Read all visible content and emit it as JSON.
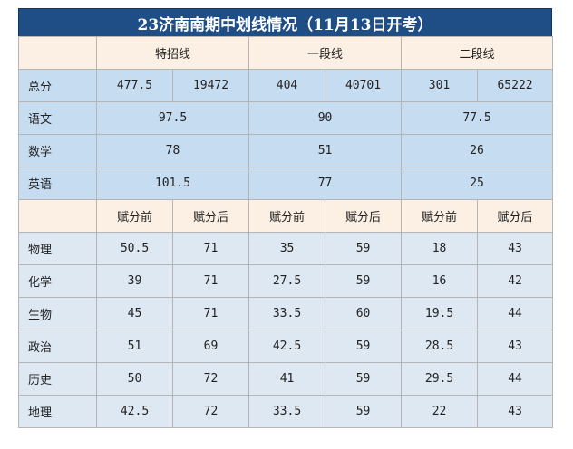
{
  "title": "23济南南期中划线情况（11月13日开考）",
  "header_groups": [
    "特招线",
    "一段线",
    "二段线"
  ],
  "total": {
    "label": "总分",
    "values": [
      "477.5",
      "19472",
      "404",
      "40701",
      "301",
      "65222"
    ]
  },
  "core_rows": [
    {
      "label": "语文",
      "values": [
        "97.5",
        "90",
        "77.5"
      ]
    },
    {
      "label": "数学",
      "values": [
        "78",
        "51",
        "26"
      ]
    },
    {
      "label": "英语",
      "values": [
        "101.5",
        "77",
        "25"
      ]
    }
  ],
  "sub_headers": [
    "赋分前",
    "赋分后",
    "赋分前",
    "赋分后",
    "赋分前",
    "赋分后"
  ],
  "elective_rows": [
    {
      "label": "物理",
      "values": [
        "50.5",
        "71",
        "35",
        "59",
        "18",
        "43"
      ]
    },
    {
      "label": "化学",
      "values": [
        "39",
        "71",
        "27.5",
        "59",
        "16",
        "42"
      ]
    },
    {
      "label": "生物",
      "values": [
        "45",
        "71",
        "33.5",
        "60",
        "19.5",
        "44"
      ]
    },
    {
      "label": "政治",
      "values": [
        "51",
        "69",
        "42.5",
        "59",
        "28.5",
        "43"
      ]
    },
    {
      "label": "历史",
      "values": [
        "50",
        "72",
        "41",
        "59",
        "29.5",
        "44"
      ]
    },
    {
      "label": "地理",
      "values": [
        "42.5",
        "72",
        "33.5",
        "59",
        "22",
        "43"
      ]
    }
  ],
  "colors": {
    "title_bg": "#1f4e86",
    "header_bg": "#fcf0e4",
    "row_blue": "#c6dcf1",
    "row_light": "#dde8f3"
  }
}
